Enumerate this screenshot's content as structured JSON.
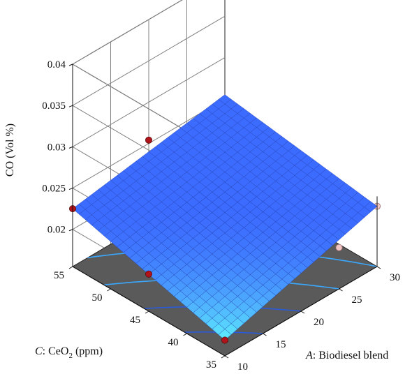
{
  "chart_data": {
    "type": "surface3d",
    "z_axis": {
      "label": "CO (Vol %)",
      "ticks": [
        "0.04",
        "0.035",
        "0.03",
        "0.025",
        "0.02"
      ],
      "tick_values": [
        0.04,
        0.035,
        0.03,
        0.025,
        0.02
      ],
      "range": [
        0.0155,
        0.04
      ]
    },
    "x_axis": {
      "label_italic": "A",
      "label_rest": ": Biodiesel blend",
      "ticks": [
        "10",
        "15",
        "20",
        "25",
        "30"
      ],
      "tick_values": [
        10,
        15,
        20,
        25,
        30
      ],
      "range": [
        10,
        30
      ]
    },
    "y_axis": {
      "label_italic": "C",
      "label_main": ": CeO",
      "label_sub": "2",
      "label_unit": " (ppm)",
      "ticks": [
        "35",
        "40",
        "45",
        "50",
        "55"
      ],
      "tick_values": [
        35,
        40,
        45,
        50,
        55
      ],
      "range": [
        35,
        55
      ]
    },
    "surface_corners": {
      "A10_C35": 0.0174,
      "A30_C35": 0.0228,
      "A10_C55": 0.0225,
      "A30_C55": 0.0255
    },
    "design_points": [
      {
        "A": 10,
        "C": 55,
        "CO": 0.0225,
        "position": "above"
      },
      {
        "A": 30,
        "C": 35,
        "CO": 0.0228,
        "position": "below"
      },
      {
        "A": 20,
        "C": 55,
        "CO": 0.0254,
        "position": "above"
      },
      {
        "A": 10,
        "C": 45,
        "CO": 0.02,
        "position": "above"
      },
      {
        "A": 10,
        "C": 35,
        "CO": 0.0174,
        "position": "above"
      },
      {
        "A": 25,
        "C": 35,
        "CO": 0.0205,
        "position": "below"
      }
    ],
    "contour_levels": 5,
    "colors": {
      "surface_high": "#3c6bff",
      "surface_low": "#5ff0ff",
      "mesh_line": "#1e3aa8",
      "floor": "#5a5a5a",
      "contour": "#3aa8ff",
      "point_above": "#b0141a",
      "point_below": "#f3c6c6",
      "grid": "#808080"
    },
    "grid": true
  }
}
